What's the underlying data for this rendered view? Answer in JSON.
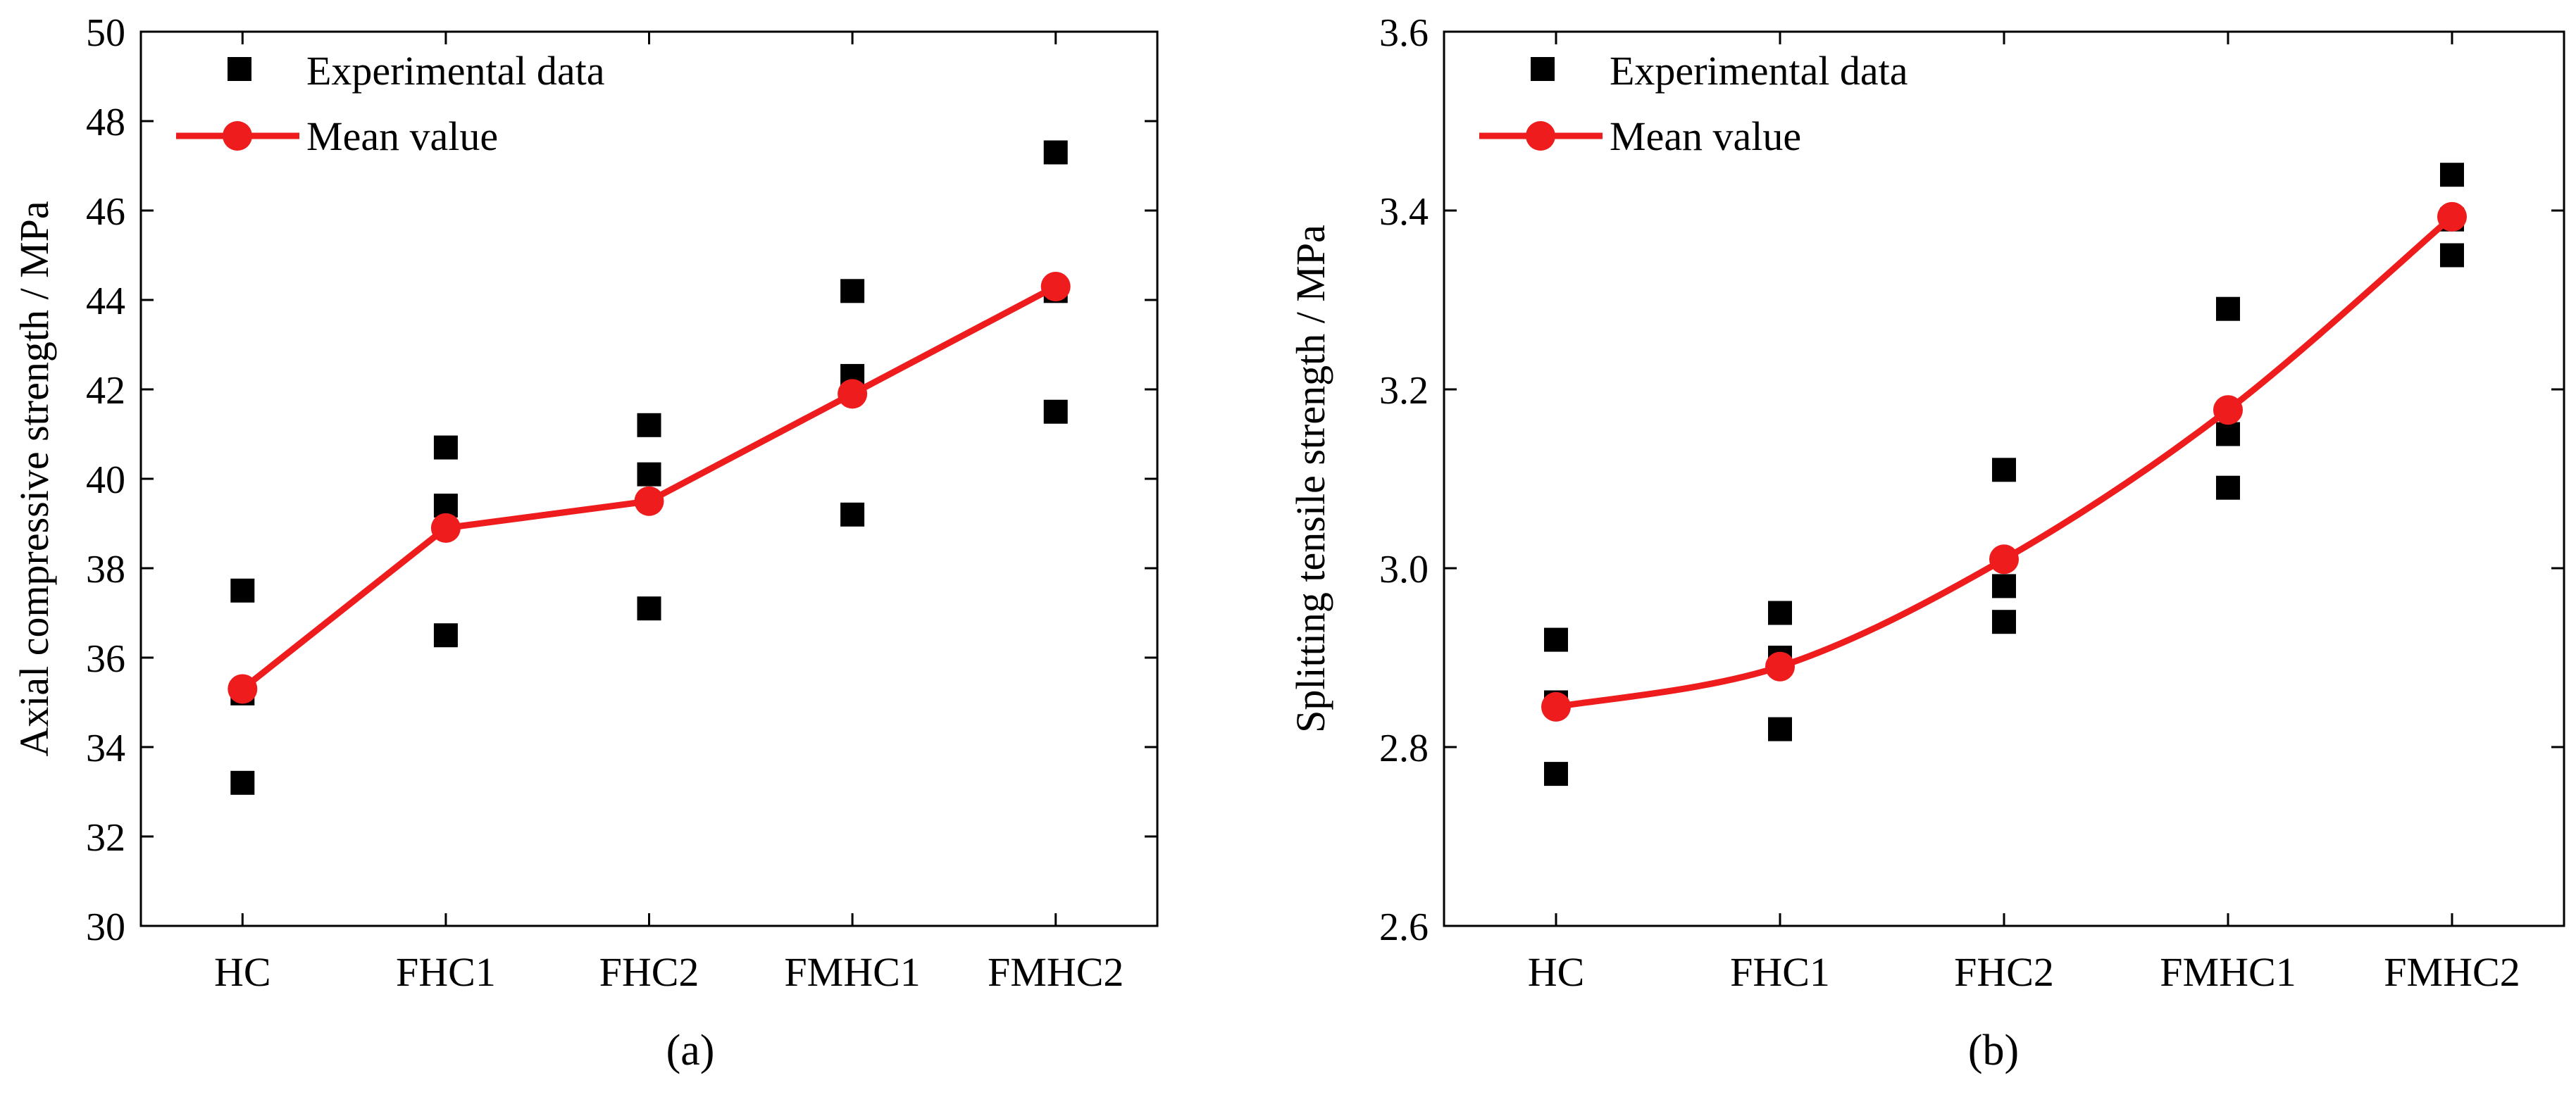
{
  "chart_data": [
    {
      "panel_label": "(a)",
      "type": "scatter",
      "title": "",
      "xlabel": "",
      "ylabel": "Axial compressive strength / MPa",
      "categories": [
        "HC",
        "FHC1",
        "FHC2",
        "FMHC1",
        "FMHC2"
      ],
      "ylim": [
        30,
        50
      ],
      "yticks": [
        "30",
        "32",
        "34",
        "36",
        "38",
        "40",
        "42",
        "44",
        "46",
        "48",
        "50"
      ],
      "grid": false,
      "legend_position": "top-left",
      "series": [
        {
          "name": "Experimental data",
          "kind": "scatter",
          "marker": "square",
          "color": "#000000",
          "values": [
            [
              37.5,
              35.2,
              33.2
            ],
            [
              40.7,
              39.4,
              36.5
            ],
            [
              41.2,
              40.1,
              37.1
            ],
            [
              44.2,
              42.3,
              39.2
            ],
            [
              47.3,
              44.2,
              41.5
            ]
          ]
        },
        {
          "name": "Mean value",
          "kind": "line",
          "marker": "circle",
          "color": "#ee1c1c",
          "values": [
            35.3,
            38.9,
            39.5,
            41.9,
            44.3
          ]
        }
      ]
    },
    {
      "panel_label": "(b)",
      "type": "scatter",
      "title": "",
      "xlabel": "",
      "ylabel": "Splitting tensile strength / MPa",
      "categories": [
        "HC",
        "FHC1",
        "FHC2",
        "FMHC1",
        "FMHC2"
      ],
      "ylim": [
        2.6,
        3.6
      ],
      "yticks": [
        "2.6",
        "2.8",
        "3.0",
        "3.2",
        "3.4",
        "3.6"
      ],
      "grid": false,
      "legend_position": "top-left",
      "series": [
        {
          "name": "Experimental data",
          "kind": "scatter",
          "marker": "square",
          "color": "#000000",
          "values": [
            [
              2.92,
              2.85,
              2.77
            ],
            [
              2.95,
              2.9,
              2.82
            ],
            [
              3.11,
              2.98,
              2.94
            ],
            [
              3.29,
              3.15,
              3.09
            ],
            [
              3.44,
              3.39,
              3.35
            ]
          ]
        },
        {
          "name": "Mean value",
          "kind": "line",
          "marker": "circle",
          "color": "#ee1c1c",
          "values": [
            2.845,
            2.89,
            3.01,
            3.177,
            3.393
          ]
        }
      ]
    }
  ]
}
